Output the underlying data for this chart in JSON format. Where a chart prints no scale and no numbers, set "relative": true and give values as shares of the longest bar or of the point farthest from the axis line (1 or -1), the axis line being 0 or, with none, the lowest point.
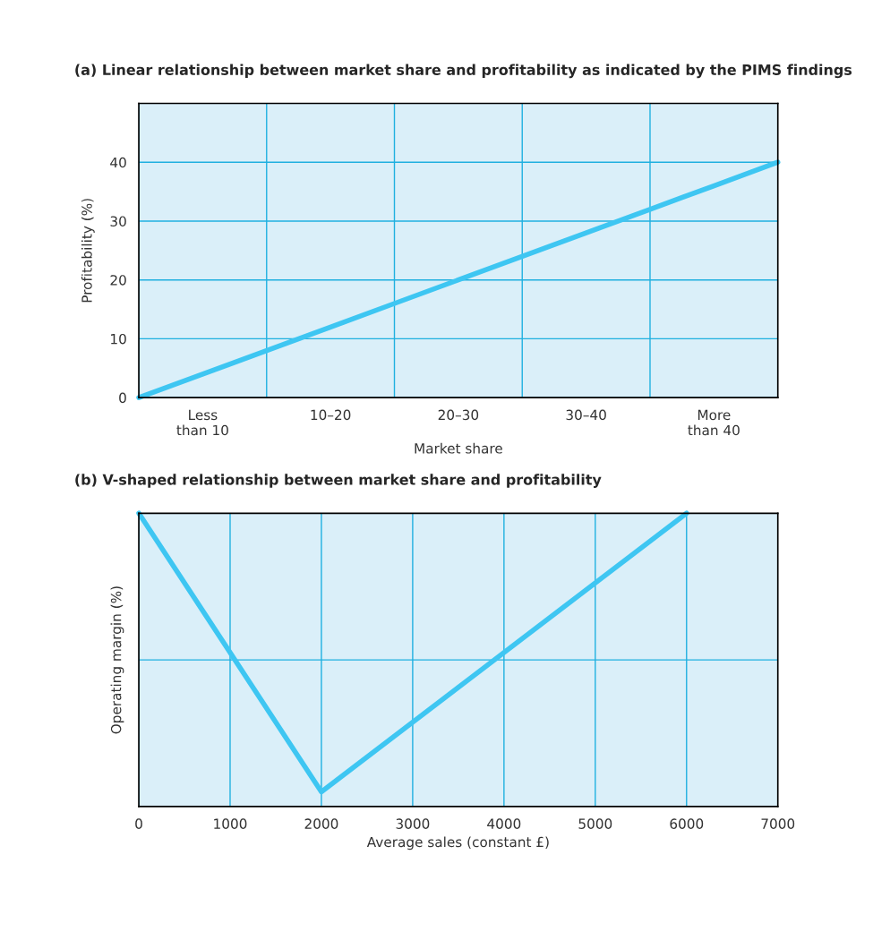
{
  "chart_data": [
    {
      "type": "line",
      "title": "(a) Linear relationship between market share and profitability as indicated by the PIMS findings",
      "xlabel": "Market share",
      "ylabel": "Profitability (%)",
      "categories": [
        null,
        "Less\nthan 10",
        null,
        "10–20",
        null,
        "20–30",
        null,
        "30–40",
        null,
        "More\nthan 40",
        null
      ],
      "series": [
        {
          "color": "#3ec6f2",
          "values": [
            0,
            4,
            8,
            12,
            16,
            20,
            24,
            28,
            32,
            36,
            40
          ]
        }
      ],
      "ylim": [
        0,
        50
      ],
      "yticks": [
        0,
        10,
        20,
        30,
        40
      ],
      "grid": true,
      "marker": "none",
      "line_style": "solid",
      "legend": false
    },
    {
      "type": "line",
      "title": "(b) V-shaped relationship between market share and profitability",
      "xlabel": "Average sales (constant £)",
      "ylabel": "Operating margin (%)",
      "x": [
        0,
        2000,
        6000
      ],
      "series": [
        {
          "color": "#3ec6f2",
          "values": [
            1,
            0.05,
            1
          ]
        }
      ],
      "relative": true,
      "xlim": [
        0,
        7000
      ],
      "xticks": [
        0,
        1000,
        2000,
        3000,
        4000,
        5000,
        6000,
        7000
      ],
      "grid": "x",
      "ref_lines": [
        {
          "axis": "y",
          "value": 0.5,
          "color": "#1fb0e0"
        }
      ],
      "marker": "none",
      "line_style": "solid",
      "legend": false
    }
  ]
}
